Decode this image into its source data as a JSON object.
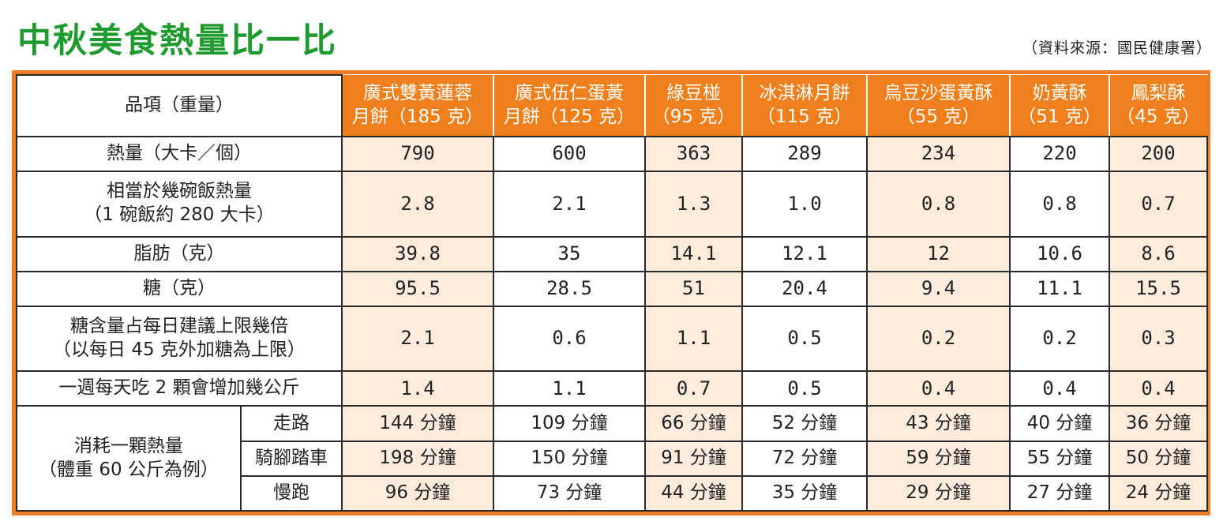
{
  "title": "中秋美食熱量比一比",
  "source": "（資料來源：國民健康署）",
  "header": {
    "corner": "品項（重量）",
    "columns": [
      {
        "name": "廣式雙黃蓮蓉",
        "weight": "月餅（185 克）"
      },
      {
        "name": "廣式伍仁蛋黃",
        "weight": "月餅（125 克）"
      },
      {
        "name": "綠豆椪",
        "weight": "（95 克）"
      },
      {
        "name": "冰淇淋月餅",
        "weight": "（115 克）"
      },
      {
        "name": "烏豆沙蛋黃酥",
        "weight": "（55 克）"
      },
      {
        "name": "奶黃酥",
        "weight": "（51 克）"
      },
      {
        "name": "鳳梨酥",
        "weight": "（45 克）"
      }
    ]
  },
  "rows": [
    {
      "label": [
        "熱量（大卡／個）"
      ],
      "values": [
        "790",
        "600",
        "363",
        "289",
        "234",
        "220",
        "200"
      ]
    },
    {
      "label": [
        "相當於幾碗飯熱量",
        "（1 碗飯約 280 大卡）"
      ],
      "values": [
        "2.8",
        "2.1",
        "1.3",
        "1.0",
        "0.8",
        "0.8",
        "0.7"
      ]
    },
    {
      "label": [
        "脂肪（克）"
      ],
      "values": [
        "39.8",
        "35",
        "14.1",
        "12.1",
        "12",
        "10.6",
        "8.6"
      ]
    },
    {
      "label": [
        "糖（克）"
      ],
      "values": [
        "95.5",
        "28.5",
        "51",
        "20.4",
        "9.4",
        "11.1",
        "15.5"
      ]
    },
    {
      "label": [
        "糖含量占每日建議上限幾倍",
        "（以每日 45 克外加糖為上限）"
      ],
      "values": [
        "2.1",
        "0.6",
        "1.1",
        "0.5",
        "0.2",
        "0.2",
        "0.3"
      ]
    },
    {
      "label": [
        "一週每天吃 2 顆會增加幾公斤"
      ],
      "values": [
        "1.4",
        "1.1",
        "0.7",
        "0.5",
        "0.4",
        "0.4",
        "0.4"
      ]
    }
  ],
  "exercise": {
    "label": [
      "消耗一顆熱量",
      "（體重 60 公斤為例）"
    ],
    "items": [
      {
        "activity": "走路",
        "values": [
          "144 分鐘",
          "109 分鐘",
          "66 分鐘",
          "52 分鐘",
          "43 分鐘",
          "40 分鐘",
          "36 分鐘"
        ]
      },
      {
        "activity": "騎腳踏車",
        "values": [
          "198 分鐘",
          "150 分鐘",
          "91 分鐘",
          "72 分鐘",
          "59 分鐘",
          "55 分鐘",
          "50 分鐘"
        ]
      },
      {
        "activity": "慢跑",
        "values": [
          "96 分鐘",
          "73 分鐘",
          "44 分鐘",
          "35 分鐘",
          "29 分鐘",
          "27 分鐘",
          "24 分鐘"
        ]
      }
    ]
  },
  "colors": {
    "title": "#1f9a2f",
    "accent": "#ef7f1a",
    "shade": "#fdebdc"
  }
}
